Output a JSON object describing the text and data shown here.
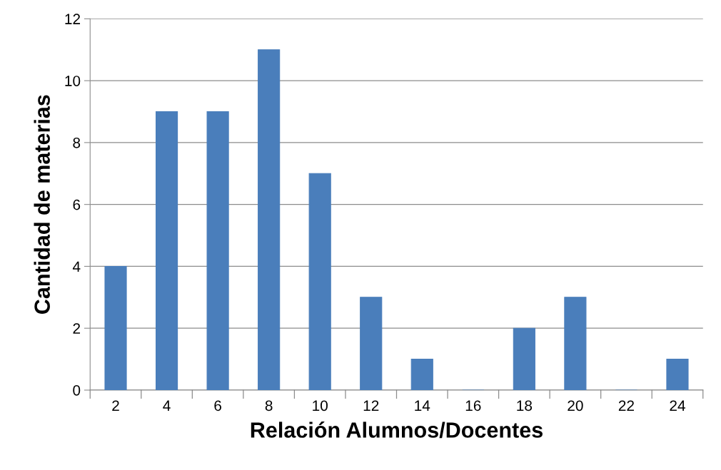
{
  "chart_data": {
    "type": "bar",
    "xlabel": "Relación Alumnos/Docentes",
    "ylabel": "Cantidad de materias",
    "categories": [
      "2",
      "4",
      "6",
      "8",
      "10",
      "12",
      "14",
      "16",
      "18",
      "20",
      "22",
      "24"
    ],
    "values": [
      4,
      9,
      9,
      11,
      7,
      3,
      1,
      0,
      2,
      3,
      0,
      1
    ],
    "color": "#4a7ebb",
    "ylim": [
      0,
      12
    ],
    "yticks": [
      0,
      2,
      4,
      6,
      8,
      10,
      12
    ],
    "grid": "y",
    "legend": false
  }
}
